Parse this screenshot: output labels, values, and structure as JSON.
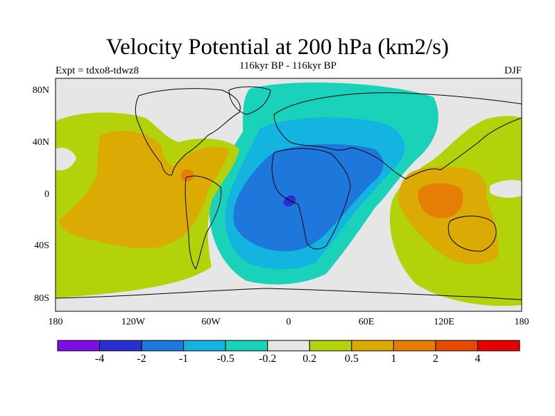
{
  "title": "Velocity Potential at 200 hPa (km2/s)",
  "subtitle": "116kyr BP - 116kyr BP",
  "experiment": "Expt = tdxo8-tdwz8",
  "season": "DJF",
  "map": {
    "projection": "cylindrical-equidistant",
    "ocean_background_color": "#e6e6e6",
    "coastline_color": "#000000",
    "lat_labels": [
      "80N",
      "40N",
      "0",
      "40S",
      "80S"
    ],
    "lon_labels": [
      "180",
      "120W",
      "60W",
      "0",
      "60E",
      "120E",
      "180"
    ]
  },
  "colorbar": {
    "colors": [
      "#7d0fe6",
      "#2830d2",
      "#1e78dc",
      "#14b4e1",
      "#19d2b9",
      "#e6e6e6",
      "#b4d20a",
      "#dcaa05",
      "#e67d05",
      "#e64b00",
      "#e60000"
    ],
    "labels": [
      "-4",
      "-2",
      "-1",
      "-0.5",
      "-0.2",
      "0.2",
      "0.5",
      "1",
      "2",
      "4"
    ]
  }
}
